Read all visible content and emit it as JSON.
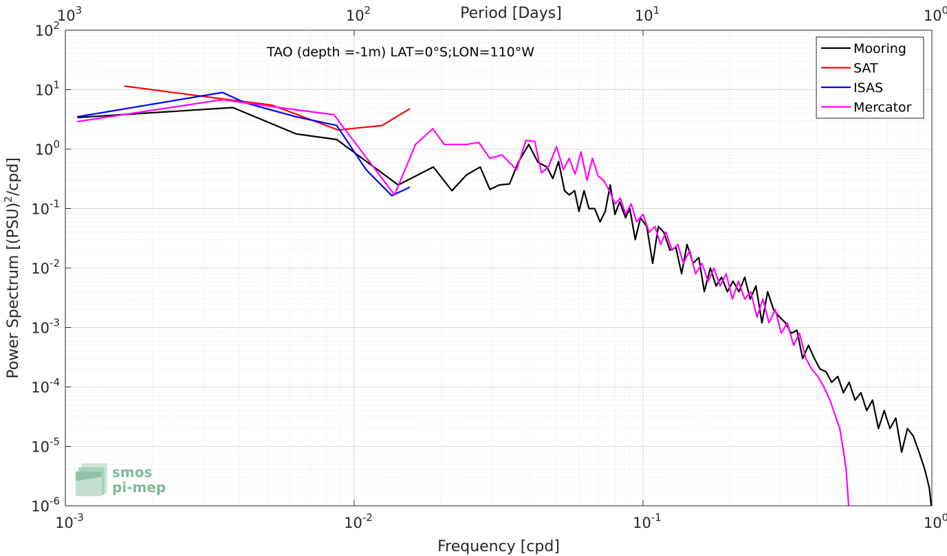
{
  "chart_data": {
    "type": "line",
    "title": "",
    "annotation": "TAO (depth =-1m) LAT=0°S;LON=110°W",
    "xlabel": "Frequency [cpd]",
    "ylabel": "Power Spectrum [(PSU)",
    "ylabel_sup": "2",
    "ylabel_suffix": "/cpd]",
    "top_xlabel": "Period [Days]",
    "x_scale": "log",
    "y_scale": "log",
    "xlim": [
      0.001,
      1
    ],
    "ylim": [
      1e-06,
      100
    ],
    "grid": true,
    "legend_position": "top-right",
    "x_ticks": [
      {
        "value": 0.001,
        "base": "10",
        "exp": "-3"
      },
      {
        "value": 0.01,
        "base": "10",
        "exp": "-2"
      },
      {
        "value": 0.1,
        "base": "10",
        "exp": "-1"
      },
      {
        "value": 1,
        "base": "10",
        "exp": "0"
      }
    ],
    "top_ticks": [
      {
        "value": 0.001,
        "base": "10",
        "exp": "3"
      },
      {
        "value": 0.01,
        "base": "10",
        "exp": "2"
      },
      {
        "value": 0.1,
        "base": "10",
        "exp": "1"
      },
      {
        "value": 1,
        "base": "10",
        "exp": "0"
      }
    ],
    "y_ticks": [
      {
        "value": 100,
        "base": "10",
        "exp": "2"
      },
      {
        "value": 10,
        "base": "10",
        "exp": "1"
      },
      {
        "value": 1,
        "base": "10",
        "exp": "0"
      },
      {
        "value": 0.1,
        "base": "10",
        "exp": "-1"
      },
      {
        "value": 0.01,
        "base": "10",
        "exp": "-2"
      },
      {
        "value": 0.001,
        "base": "10",
        "exp": "-3"
      },
      {
        "value": 0.0001,
        "base": "10",
        "exp": "-4"
      },
      {
        "value": 1e-05,
        "base": "10",
        "exp": "-5"
      },
      {
        "value": 1e-06,
        "base": "10",
        "exp": "-6"
      }
    ],
    "series": [
      {
        "name": "Mooring",
        "color": "#000000",
        "points": [
          [
            0.0011,
            3.4
          ],
          [
            0.0038,
            5.0
          ],
          [
            0.0063,
            1.8
          ],
          [
            0.0087,
            1.45
          ],
          [
            0.0142,
            0.25
          ],
          [
            0.0188,
            0.5
          ],
          [
            0.0218,
            0.2
          ],
          [
            0.0245,
            0.37
          ],
          [
            0.0273,
            0.5
          ],
          [
            0.0295,
            0.21
          ],
          [
            0.0318,
            0.25
          ],
          [
            0.0345,
            0.26
          ],
          [
            0.037,
            0.6
          ],
          [
            0.0402,
            1.2
          ],
          [
            0.0433,
            0.6
          ],
          [
            0.0465,
            0.5
          ],
          [
            0.0487,
            0.32
          ],
          [
            0.051,
            0.62
          ],
          [
            0.0535,
            0.2
          ],
          [
            0.0555,
            0.17
          ],
          [
            0.058,
            0.2
          ],
          [
            0.06,
            0.09
          ],
          [
            0.0625,
            0.2
          ],
          [
            0.065,
            0.1
          ],
          [
            0.068,
            0.1
          ],
          [
            0.071,
            0.06
          ],
          [
            0.074,
            0.09
          ],
          [
            0.077,
            0.25
          ],
          [
            0.08,
            0.08
          ],
          [
            0.083,
            0.13
          ],
          [
            0.087,
            0.07
          ],
          [
            0.09,
            0.1
          ],
          [
            0.094,
            0.03
          ],
          [
            0.098,
            0.07
          ],
          [
            0.103,
            0.05
          ],
          [
            0.108,
            0.012
          ],
          [
            0.113,
            0.05
          ],
          [
            0.118,
            0.04
          ],
          [
            0.124,
            0.02
          ],
          [
            0.13,
            0.022
          ],
          [
            0.136,
            0.008
          ],
          [
            0.142,
            0.025
          ],
          [
            0.149,
            0.012
          ],
          [
            0.156,
            0.015
          ],
          [
            0.163,
            0.004
          ],
          [
            0.171,
            0.01
          ],
          [
            0.179,
            0.005
          ],
          [
            0.187,
            0.007
          ],
          [
            0.196,
            0.004
          ],
          [
            0.205,
            0.006
          ],
          [
            0.215,
            0.004
          ],
          [
            0.225,
            0.007
          ],
          [
            0.235,
            0.003
          ],
          [
            0.246,
            0.005
          ],
          [
            0.258,
            0.0012
          ],
          [
            0.27,
            0.004
          ],
          [
            0.283,
            0.002
          ],
          [
            0.297,
            0.0015
          ],
          [
            0.311,
            0.0012
          ],
          [
            0.326,
            0.0008
          ],
          [
            0.341,
            0.0009
          ],
          [
            0.357,
            0.0003
          ],
          [
            0.374,
            0.0005
          ],
          [
            0.392,
            0.0003
          ],
          [
            0.41,
            0.0002
          ],
          [
            0.43,
            0.00018
          ],
          [
            0.45,
            0.00012
          ],
          [
            0.472,
            0.00015
          ],
          [
            0.494,
            8e-05
          ],
          [
            0.517,
            0.00012
          ],
          [
            0.542,
            6e-05
          ],
          [
            0.568,
            8e-05
          ],
          [
            0.595,
            4e-05
          ],
          [
            0.623,
            6e-05
          ],
          [
            0.653,
            2e-05
          ],
          [
            0.684,
            4e-05
          ],
          [
            0.716,
            2e-05
          ],
          [
            0.75,
            3e-05
          ],
          [
            0.786,
            8e-06
          ],
          [
            0.823,
            2e-05
          ],
          [
            0.862,
            1.5e-05
          ],
          [
            0.903,
            8e-06
          ],
          [
            0.946,
            4e-06
          ],
          [
            0.98,
            2e-06
          ],
          [
            0.995,
            1e-06
          ]
        ]
      },
      {
        "name": "SAT",
        "color": "#ff0000",
        "points": [
          [
            0.0016,
            11.5
          ],
          [
            0.0035,
            7.0
          ],
          [
            0.0052,
            5.5
          ],
          [
            0.0088,
            2.1
          ],
          [
            0.0125,
            2.5
          ],
          [
            0.0156,
            4.8
          ]
        ]
      },
      {
        "name": "ISAS",
        "color": "#0000ff",
        "points": [
          [
            0.0011,
            3.5
          ],
          [
            0.0035,
            9.0
          ],
          [
            0.0042,
            6.0
          ],
          [
            0.0063,
            3.5
          ],
          [
            0.0087,
            2.5
          ],
          [
            0.011,
            0.45
          ],
          [
            0.0135,
            0.165
          ],
          [
            0.0156,
            0.23
          ]
        ]
      },
      {
        "name": "Mercator",
        "color": "#ff00ff",
        "points": [
          [
            0.0011,
            2.9
          ],
          [
            0.0035,
            6.8
          ],
          [
            0.0055,
            5.0
          ],
          [
            0.0085,
            3.8
          ],
          [
            0.0138,
            0.17
          ],
          [
            0.0163,
            1.2
          ],
          [
            0.0187,
            2.2
          ],
          [
            0.0205,
            1.2
          ],
          [
            0.0245,
            1.2
          ],
          [
            0.027,
            1.3
          ],
          [
            0.0295,
            0.7
          ],
          [
            0.0325,
            0.8
          ],
          [
            0.0365,
            0.45
          ],
          [
            0.0393,
            1.4
          ],
          [
            0.0422,
            1.35
          ],
          [
            0.0445,
            0.4
          ],
          [
            0.047,
            0.5
          ],
          [
            0.0502,
            1.1
          ],
          [
            0.053,
            0.45
          ],
          [
            0.0555,
            0.7
          ],
          [
            0.0582,
            0.38
          ],
          [
            0.061,
            0.9
          ],
          [
            0.064,
            0.3
          ],
          [
            0.0668,
            0.7
          ],
          [
            0.07,
            0.35
          ],
          [
            0.073,
            0.3
          ],
          [
            0.0765,
            0.2
          ],
          [
            0.08,
            0.12
          ],
          [
            0.0835,
            0.15
          ],
          [
            0.087,
            0.08
          ],
          [
            0.091,
            0.12
          ],
          [
            0.095,
            0.06
          ],
          [
            0.1,
            0.08
          ],
          [
            0.105,
            0.04
          ],
          [
            0.11,
            0.05
          ],
          [
            0.115,
            0.025
          ],
          [
            0.12,
            0.04
          ],
          [
            0.126,
            0.02
          ],
          [
            0.132,
            0.025
          ],
          [
            0.138,
            0.012
          ],
          [
            0.145,
            0.02
          ],
          [
            0.152,
            0.008
          ],
          [
            0.16,
            0.012
          ],
          [
            0.168,
            0.006
          ],
          [
            0.176,
            0.01
          ],
          [
            0.185,
            0.005
          ],
          [
            0.194,
            0.008
          ],
          [
            0.204,
            0.003
          ],
          [
            0.214,
            0.006
          ],
          [
            0.225,
            0.003
          ],
          [
            0.236,
            0.004
          ],
          [
            0.248,
            0.0015
          ],
          [
            0.26,
            0.003
          ],
          [
            0.273,
            0.0012
          ],
          [
            0.287,
            0.002
          ],
          [
            0.301,
            0.0008
          ],
          [
            0.316,
            0.0012
          ],
          [
            0.332,
            0.0005
          ],
          [
            0.348,
            0.0008
          ],
          [
            0.366,
            0.0003
          ],
          [
            0.384,
            0.0002
          ],
          [
            0.403,
            0.00015
          ],
          [
            0.423,
            0.0001
          ],
          [
            0.444,
            6e-05
          ],
          [
            0.466,
            3e-05
          ],
          [
            0.48,
            2e-05
          ],
          [
            0.495,
            8e-06
          ],
          [
            0.505,
            4e-06
          ],
          [
            0.51,
            2e-06
          ],
          [
            0.515,
            1e-06
          ]
        ]
      }
    ]
  },
  "logo": {
    "line1": "smos",
    "line2": "pi-mep"
  },
  "colors": {
    "grid": "#d9d9d9",
    "minor_grid": "#ececec",
    "axes": "#262626",
    "logo": "#7fb99a"
  }
}
